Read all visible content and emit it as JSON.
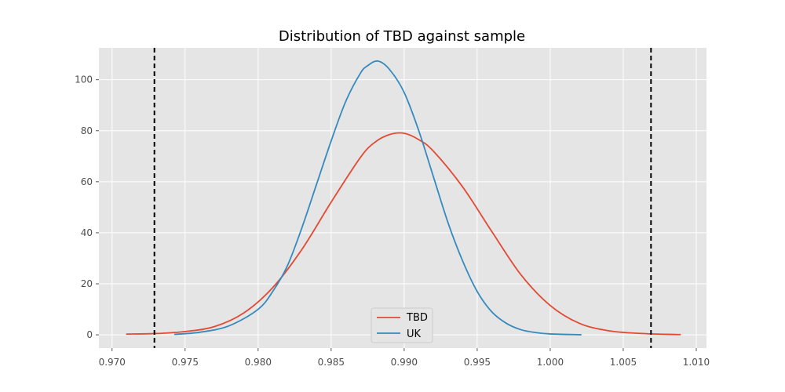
{
  "chart_data": {
    "type": "line",
    "title": "Distribution of TBD against sample",
    "xlabel": "",
    "ylabel": "",
    "xlim": [
      0.9691,
      1.0107
    ],
    "ylim": [
      -5.2,
      112.5
    ],
    "x_ticks": [
      0.97,
      0.975,
      0.98,
      0.985,
      0.99,
      0.995,
      1.0,
      1.005,
      1.01
    ],
    "x_tick_labels": [
      "0.970",
      "0.975",
      "0.980",
      "0.985",
      "0.990",
      "0.995",
      "1.000",
      "1.005",
      "1.010"
    ],
    "y_ticks": [
      0,
      20,
      40,
      60,
      80,
      100
    ],
    "y_tick_labels": [
      "0",
      "20",
      "40",
      "60",
      "80",
      "100"
    ],
    "grid": true,
    "style": "ggplot",
    "legend_position": "lower center",
    "series": [
      {
        "name": "TBD",
        "color": "#E24A33",
        "x": [
          0.971,
          0.973,
          0.975,
          0.977,
          0.979,
          0.981,
          0.983,
          0.985,
          0.987,
          0.988,
          0.989,
          0.99,
          0.991,
          0.992,
          0.994,
          0.996,
          0.998,
          1.0,
          1.002,
          1.004,
          1.006,
          1.008,
          1.0089
        ],
        "y": [
          0.3,
          0.5,
          1.3,
          3.2,
          8.5,
          18.5,
          33.5,
          52.0,
          69.5,
          75.5,
          78.5,
          79.0,
          76.5,
          72.0,
          58.0,
          40.5,
          23.5,
          11.5,
          4.5,
          1.6,
          0.6,
          0.2,
          0.1
        ]
      },
      {
        "name": "UK",
        "color": "#348ABD",
        "x": [
          0.9743,
          0.976,
          0.978,
          0.98,
          0.981,
          0.982,
          0.983,
          0.984,
          0.985,
          0.986,
          0.987,
          0.9875,
          0.9882,
          0.989,
          0.99,
          0.991,
          0.992,
          0.993,
          0.994,
          0.995,
          0.996,
          0.997,
          0.998,
          0.999,
          1.0,
          1.0021
        ],
        "y": [
          0.2,
          1.0,
          3.5,
          10.0,
          17.0,
          27.0,
          42.0,
          59.0,
          76.0,
          91.5,
          102.5,
          105.5,
          107.3,
          104.0,
          95.0,
          80.0,
          62.0,
          44.0,
          29.0,
          17.0,
          9.0,
          4.5,
          2.0,
          0.9,
          0.35,
          0.05
        ]
      }
    ],
    "vlines": [
      {
        "x": 0.9729,
        "color": "#000000",
        "style": "dashed"
      },
      {
        "x": 1.0069,
        "color": "#000000",
        "style": "dashed"
      }
    ]
  }
}
